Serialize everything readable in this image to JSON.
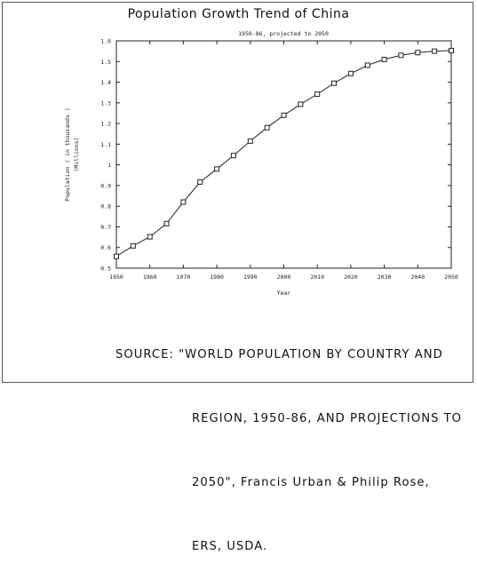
{
  "chart_data": {
    "type": "line",
    "title": "Population Growth Trend of China",
    "subtitle": "1950-86, projected to 2050",
    "xlabel": "Year",
    "ylabel_lines": [
      "Population ( in thousands )",
      "(Millions)"
    ],
    "xlim": [
      1950,
      2050
    ],
    "ylim": [
      0.5,
      1.6
    ],
    "x_ticks": [
      "1950",
      "1960",
      "1970",
      "1980",
      "1990",
      "2000",
      "2010",
      "2020",
      "2030",
      "2040",
      "2050"
    ],
    "y_ticks": [
      "0.5",
      "0.6",
      "0.7",
      "0.8",
      "0.9",
      "1",
      "1.1",
      "1.2",
      "1.3",
      "1.4",
      "1.5",
      "1.6"
    ],
    "grid": false,
    "series": [
      {
        "x": [
          1950,
          1955,
          1960,
          1965,
          1970,
          1975,
          1980,
          1985,
          1990,
          1995,
          2000,
          2005,
          2010,
          2015,
          2020,
          2025,
          2030,
          2035,
          2040,
          2045,
          2050
        ],
        "y": [
          0.557,
          0.608,
          0.652,
          0.716,
          0.82,
          0.917,
          0.98,
          1.045,
          1.115,
          1.18,
          1.24,
          1.293,
          1.342,
          1.395,
          1.442,
          1.482,
          1.51,
          1.53,
          1.543,
          1.55,
          1.553
        ],
        "marker": "square"
      }
    ]
  },
  "source": {
    "lines": [
      "SOURCE: \"WORLD POPULATION BY COUNTRY AND",
      "REGION, 1950-86, AND PROJECTIONS TO",
      "2050\", Francis Urban & Philip Rose,",
      "ERS, USDA."
    ]
  },
  "colors": {
    "line": "#222222",
    "axis": "#222222",
    "text": "#111111"
  }
}
